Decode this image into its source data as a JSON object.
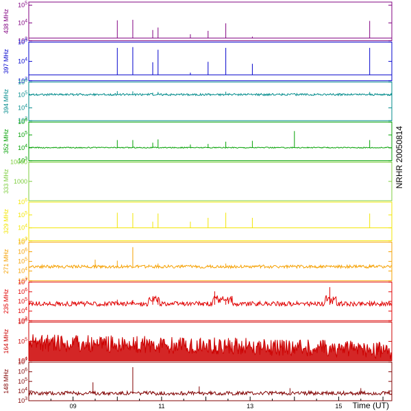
{
  "chart_data": {
    "type": "line",
    "station_title": "NRHR 20050814",
    "x_axis": {
      "label": "Time (UT)",
      "range_hours": [
        8.0,
        16.2
      ],
      "ticks": [
        {
          "value": 9,
          "label": "09"
        },
        {
          "value": 11,
          "label": "11"
        },
        {
          "value": 13,
          "label": "13"
        },
        {
          "value": 15,
          "label": "15"
        }
      ]
    },
    "common_spikes_hours": [
      10.0,
      10.35,
      10.8,
      10.92,
      11.65,
      12.05,
      12.45,
      13.05,
      15.7
    ],
    "panels": [
      {
        "name": "438 MHz",
        "color": "#800080",
        "scale": "log",
        "ticks": [
          {
            "v": 1000,
            "label": "10^3"
          },
          {
            "v": 10000,
            "label": "10^4"
          },
          {
            "v": 100000,
            "label": "10^5"
          }
        ],
        "ylim": [
          1000,
          150000
        ],
        "baseline": 1400,
        "noise": 0.0,
        "burst": 0,
        "spikes": [
          [
            10.0,
            14000
          ],
          [
            10.35,
            15000
          ],
          [
            10.8,
            4000
          ],
          [
            10.92,
            5500
          ],
          [
            11.65,
            2300
          ],
          [
            12.05,
            3600
          ],
          [
            12.45,
            9500
          ],
          [
            13.05,
            1700
          ],
          [
            15.7,
            13000
          ]
        ]
      },
      {
        "name": "397 MHz",
        "color": "#0000cc",
        "scale": "log",
        "ticks": [
          {
            "v": 1000,
            "label": "10^3"
          },
          {
            "v": 10000,
            "label": "10^4"
          },
          {
            "v": 100000,
            "label": "10^5"
          }
        ],
        "ylim": [
          1000,
          100000
        ],
        "baseline": 2000,
        "noise": 0.0,
        "burst": 0,
        "spikes": [
          [
            10.0,
            50000
          ],
          [
            10.35,
            55000
          ],
          [
            10.8,
            9000
          ],
          [
            10.92,
            40000
          ],
          [
            11.65,
            2600
          ],
          [
            12.05,
            9500
          ],
          [
            12.45,
            50000
          ],
          [
            13.05,
            7500
          ],
          [
            15.7,
            50000
          ]
        ]
      },
      {
        "name": "394 MHz",
        "color": "#008b8b",
        "scale": "log",
        "ticks": [
          {
            "v": 1000,
            "label": "10^3"
          },
          {
            "v": 10000,
            "label": "10^4"
          },
          {
            "v": 100000,
            "label": "10^5"
          },
          {
            "v": 1000000,
            "label": "10^6"
          }
        ],
        "ylim": [
          1000,
          1000000
        ],
        "baseline": 100000,
        "noise": 0.04,
        "burst": 0,
        "spikes": [
          [
            10.0,
            200000
          ],
          [
            10.35,
            190000
          ],
          [
            10.8,
            150000
          ],
          [
            10.92,
            170000
          ],
          [
            12.45,
            180000
          ],
          [
            15.7,
            170000
          ]
        ]
      },
      {
        "name": "352 MHz",
        "color": "#00a000",
        "scale": "log",
        "ticks": [
          {
            "v": 1000,
            "label": "10^3"
          },
          {
            "v": 10000,
            "label": "10^4"
          },
          {
            "v": 100000,
            "label": "10^5"
          },
          {
            "v": 1000000,
            "label": "10^6"
          }
        ],
        "ylim": [
          1000,
          1000000
        ],
        "baseline": 10000,
        "noise": 0.02,
        "burst": 0,
        "spikes": [
          [
            10.0,
            40000
          ],
          [
            10.35,
            40000
          ],
          [
            10.8,
            25000
          ],
          [
            10.92,
            45000
          ],
          [
            11.65,
            18000
          ],
          [
            12.05,
            20000
          ],
          [
            12.45,
            30000
          ],
          [
            13.05,
            35000
          ],
          [
            14.0,
            200000
          ],
          [
            15.7,
            40000
          ]
        ]
      },
      {
        "name": "333 MHz",
        "color": "#7ccd3c",
        "scale": "log",
        "ticks": [
          {
            "v": 1000,
            "label": "1000"
          },
          {
            "v": 10000,
            "label": "10000"
          }
        ],
        "ylim": [
          100,
          10000
        ],
        "baseline": 10000,
        "noise": 0.0,
        "burst": 0,
        "spikes": []
      },
      {
        "name": "329 MHz",
        "color": "#f2e600",
        "scale": "log",
        "ticks": [
          {
            "v": 1000,
            "label": "10^3"
          },
          {
            "v": 10000,
            "label": "10^4"
          },
          {
            "v": 100000,
            "label": "10^5"
          },
          {
            "v": 1000000,
            "label": "10^6"
          }
        ],
        "ylim": [
          1000,
          1000000
        ],
        "baseline": 10000,
        "noise": 0.0,
        "burst": 0,
        "spikes": [
          [
            10.0,
            150000
          ],
          [
            10.35,
            140000
          ],
          [
            10.8,
            30000
          ],
          [
            10.92,
            130000
          ],
          [
            11.65,
            30000
          ],
          [
            12.05,
            60000
          ],
          [
            12.45,
            150000
          ],
          [
            13.05,
            60000
          ],
          [
            15.7,
            130000
          ]
        ]
      },
      {
        "name": "271 MHz",
        "color": "#f5a000",
        "scale": "log",
        "ticks": [
          {
            "v": 1000,
            "label": "10^3"
          },
          {
            "v": 10000,
            "label": "10^4"
          },
          {
            "v": 100000,
            "label": "10^5"
          },
          {
            "v": 1000000,
            "label": "10^6"
          },
          {
            "v": 10000000,
            "label": "10^7"
          }
        ],
        "ylim": [
          1000,
          10000000
        ],
        "baseline": 25000,
        "noise": 0.08,
        "burst": 0,
        "spikes": [
          [
            9.5,
            150000
          ],
          [
            10.0,
            120000
          ],
          [
            10.35,
            3000000
          ],
          [
            10.92,
            60000
          ],
          [
            12.45,
            60000
          ],
          [
            15.7,
            50000
          ]
        ]
      },
      {
        "name": "235 MHz",
        "color": "#e00000",
        "scale": "log",
        "ticks": [
          {
            "v": 1000,
            "label": "10^3"
          },
          {
            "v": 10000,
            "label": "10^4"
          },
          {
            "v": 100000,
            "label": "10^5"
          },
          {
            "v": 1000000,
            "label": "10^6"
          },
          {
            "v": 10000000,
            "label": "10^7"
          }
        ],
        "ylim": [
          1000,
          10000000
        ],
        "baseline": 45000,
        "noise": 0.12,
        "burst": 1,
        "spikes": [
          [
            9.0,
            70000
          ],
          [
            10.0,
            150000
          ],
          [
            10.35,
            140000
          ],
          [
            10.8,
            90000
          ],
          [
            10.92,
            180000
          ],
          [
            12.2,
            1100000
          ],
          [
            12.45,
            160000
          ],
          [
            14.8,
            3000000
          ],
          [
            15.7,
            120000
          ]
        ]
      },
      {
        "name": "164 MHz",
        "color": "#cc0000",
        "scale": "log",
        "ticks": [
          {
            "v": 10000,
            "label": "10^4"
          },
          {
            "v": 100000,
            "label": "10^5"
          },
          {
            "v": 1000000,
            "label": "10^6"
          }
        ],
        "ylim": [
          10000,
          1000000
        ],
        "baseline": 30000,
        "noise": 0.3,
        "burst": 2,
        "spikes": []
      },
      {
        "name": "148 MHz",
        "color": "#800000",
        "scale": "log",
        "ticks": [
          {
            "v": 1000,
            "label": "10^3"
          },
          {
            "v": 10000,
            "label": "10^4"
          },
          {
            "v": 100000,
            "label": "10^5"
          },
          {
            "v": 1000000,
            "label": "10^6"
          },
          {
            "v": 10000000,
            "label": "10^7"
          }
        ],
        "ylim": [
          1000,
          10000000
        ],
        "baseline": 5000,
        "noise": 0.1,
        "burst": 0,
        "spikes": [
          [
            9.45,
            80000
          ],
          [
            10.35,
            3000000
          ],
          [
            11.85,
            30000
          ],
          [
            13.9,
            20000
          ],
          [
            15.5,
            20000
          ]
        ]
      }
    ]
  }
}
